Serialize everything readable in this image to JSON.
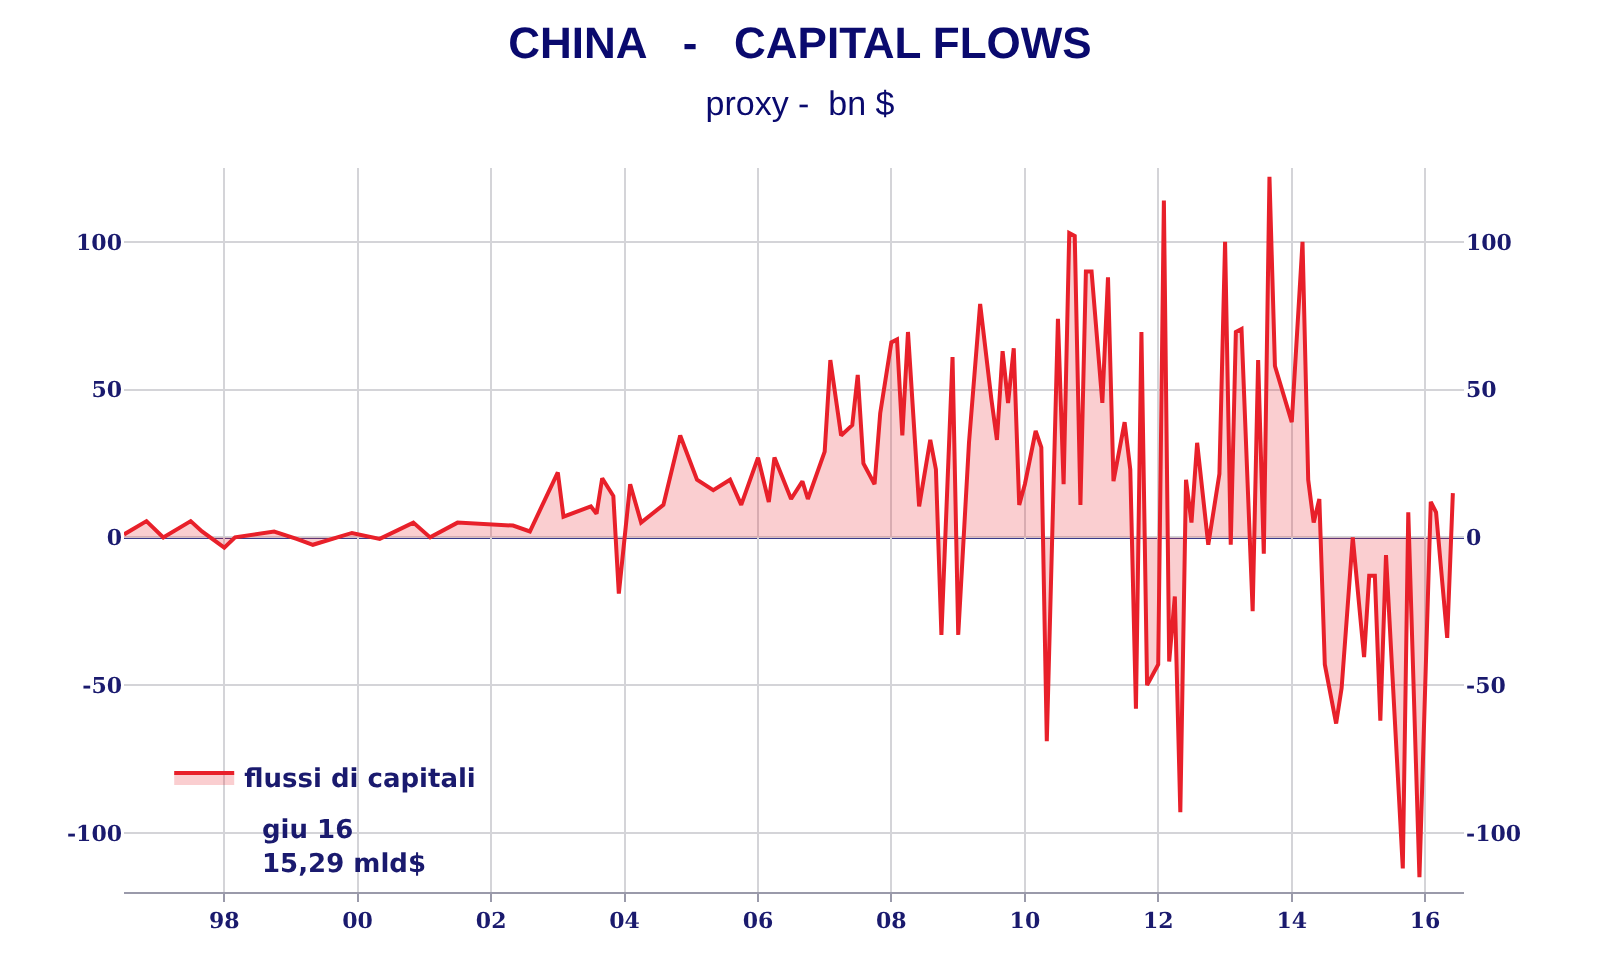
{
  "chart_data": {
    "type": "area",
    "title": "CHINA   -   CAPITAL FLOWS",
    "subtitle": "proxy -  bn $",
    "x": [
      "1996-07",
      "1996-11",
      "1997-02",
      "1997-07",
      "1997-09",
      "1998-01",
      "1998-03",
      "1998-10",
      "1999-02",
      "1999-05",
      "1999-12",
      "2000-05",
      "2000-11",
      "2001-02",
      "2001-07",
      "2002-05",
      "2002-08",
      "2003-01",
      "2003-02",
      "2003-07",
      "2003-08",
      "2003-09",
      "2003-11",
      "2003-12",
      "2004-02",
      "2004-04",
      "2004-08",
      "2004-11",
      "2005-02",
      "2005-05",
      "2005-08",
      "2005-10",
      "2006-01",
      "2006-03",
      "2006-04",
      "2006-07",
      "2006-09",
      "2006-10",
      "2007-01",
      "2007-02",
      "2007-04",
      "2007-06",
      "2007-07",
      "2007-08",
      "2007-10",
      "2007-11",
      "2008-01",
      "2008-02",
      "2008-03",
      "2008-04",
      "2008-06",
      "2008-08",
      "2008-09",
      "2008-10",
      "2008-12",
      "2009-01",
      "2009-03",
      "2009-05",
      "2009-07",
      "2009-08",
      "2009-09",
      "2009-10",
      "2009-11",
      "2009-12",
      "2010-01",
      "2010-03",
      "2010-04",
      "2010-05",
      "2010-07",
      "2010-08",
      "2010-09",
      "2010-10",
      "2010-11",
      "2010-12",
      "2011-01",
      "2011-03",
      "2011-04",
      "2011-05",
      "2011-07",
      "2011-08",
      "2011-09",
      "2011-10",
      "2011-11",
      "2012-01",
      "2012-02",
      "2012-03",
      "2012-04",
      "2012-05",
      "2012-06",
      "2012-07",
      "2012-08",
      "2012-10",
      "2012-12",
      "2013-01",
      "2013-02",
      "2013-03",
      "2013-04",
      "2013-06",
      "2013-07",
      "2013-08",
      "2013-09",
      "2013-10",
      "2014-01",
      "2014-03",
      "2014-04",
      "2014-05",
      "2014-06",
      "2014-07",
      "2014-09",
      "2014-10",
      "2014-12",
      "2015-02",
      "2015-03",
      "2015-04",
      "2015-05",
      "2015-06",
      "2015-09",
      "2015-10",
      "2015-12",
      "2016-02",
      "2016-03",
      "2016-05",
      "2016-06"
    ],
    "series": [
      {
        "name": "flussi di capitali",
        "color": "#e8202a",
        "values": [
          1,
          5.5,
          0,
          5.5,
          2,
          -3.5,
          0,
          2,
          -0.5,
          -2.5,
          1.5,
          -0.5,
          5,
          0,
          5,
          4,
          2,
          22,
          7,
          10.5,
          8,
          20,
          14,
          -19,
          18,
          5,
          11,
          34.5,
          19.5,
          16,
          19.5,
          11,
          27,
          12,
          27,
          13,
          19,
          13,
          29,
          60,
          34.5,
          38,
          55,
          25,
          18,
          42,
          66,
          67,
          34.5,
          69.5,
          10.5,
          33,
          23,
          -33,
          61,
          -33,
          32,
          79,
          47,
          33,
          63,
          45.5,
          64,
          11,
          18,
          36,
          30.5,
          -69,
          74,
          18,
          103,
          102,
          11,
          90,
          90,
          45.5,
          88,
          19,
          39,
          23,
          -58,
          69.5,
          -50,
          -43,
          114,
          -42,
          -20,
          -93,
          19.5,
          5,
          32,
          -2.5,
          21.5,
          100,
          -2.5,
          69.5,
          70.5,
          -25,
          60,
          -5.5,
          122,
          58,
          39,
          100,
          19.5,
          5,
          13,
          -43,
          -63,
          -51,
          0,
          -40.5,
          -13,
          -13,
          -62,
          -6,
          -112,
          8.5,
          -115,
          12,
          8.5,
          -34,
          15
        ]
      }
    ],
    "xlim": [
      "1996-07",
      "2016-08"
    ],
    "xticks": [
      {
        "value": "1998",
        "label": "98"
      },
      {
        "value": "2000",
        "label": "00"
      },
      {
        "value": "2002",
        "label": "02"
      },
      {
        "value": "2004",
        "label": "04"
      },
      {
        "value": "2006",
        "label": "06"
      },
      {
        "value": "2008",
        "label": "08"
      },
      {
        "value": "2010",
        "label": "10"
      },
      {
        "value": "2012",
        "label": "12"
      },
      {
        "value": "2014",
        "label": "14"
      },
      {
        "value": "2016",
        "label": "16"
      }
    ],
    "ylim": [
      -120,
      125
    ],
    "yticks": [
      -100,
      -50,
      0,
      50,
      100
    ],
    "y2lim": [
      -120,
      125
    ],
    "y2ticks": [
      -100,
      -50,
      0,
      50,
      100
    ],
    "grid": true,
    "legend": "bottom left",
    "ref_lines": [
      {
        "axis": "y",
        "value": 0,
        "color": "#3a3a8a"
      }
    ],
    "annotations": [
      "giu 16\n15,29 mld$"
    ]
  }
}
